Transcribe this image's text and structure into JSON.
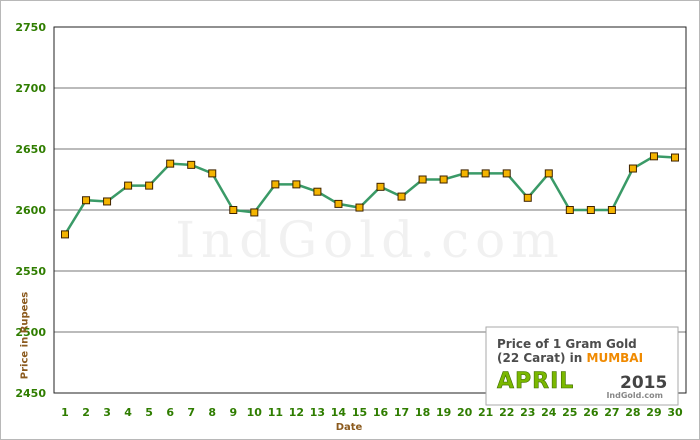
{
  "chart_data": {
    "type": "line",
    "xlabel": "Date",
    "ylabel": "Price in Rupees",
    "categories": [
      "1",
      "2",
      "3",
      "4",
      "5",
      "6",
      "7",
      "8",
      "9",
      "10",
      "11",
      "12",
      "13",
      "14",
      "15",
      "16",
      "17",
      "18",
      "19",
      "20",
      "21",
      "22",
      "23",
      "24",
      "25",
      "26",
      "27",
      "28",
      "29",
      "30"
    ],
    "series": [
      {
        "values": [
          2580,
          2608,
          2607,
          2620,
          2620,
          2638,
          2637,
          2630,
          2600,
          2598,
          2621,
          2621,
          2615,
          2605,
          2602,
          2619,
          2611,
          2625,
          2625,
          2630,
          2630,
          2630,
          2610,
          2630,
          2600,
          2600,
          2600,
          2634,
          2644,
          2643
        ]
      }
    ],
    "ylim": [
      2450,
      2750
    ],
    "yticks": [
      "2450",
      "2500",
      "2550",
      "2600",
      "2650",
      "2700",
      "2750"
    ],
    "grid": true,
    "colors": {
      "line": "#3a9a67",
      "marker": "#f4b400",
      "marker_edge": "#3d2200",
      "tick_text": "#2f7d00",
      "date_text": "#8b5a1e",
      "grid": "#777777"
    }
  },
  "inset": {
    "line1": "Price of 1 Gram Gold",
    "line2_prefix": "(22 Carat) in",
    "city": "MUMBAI",
    "month": "APRIL",
    "year": "2015",
    "brand": "IndGold.com"
  },
  "watermark": "IndGold.com"
}
